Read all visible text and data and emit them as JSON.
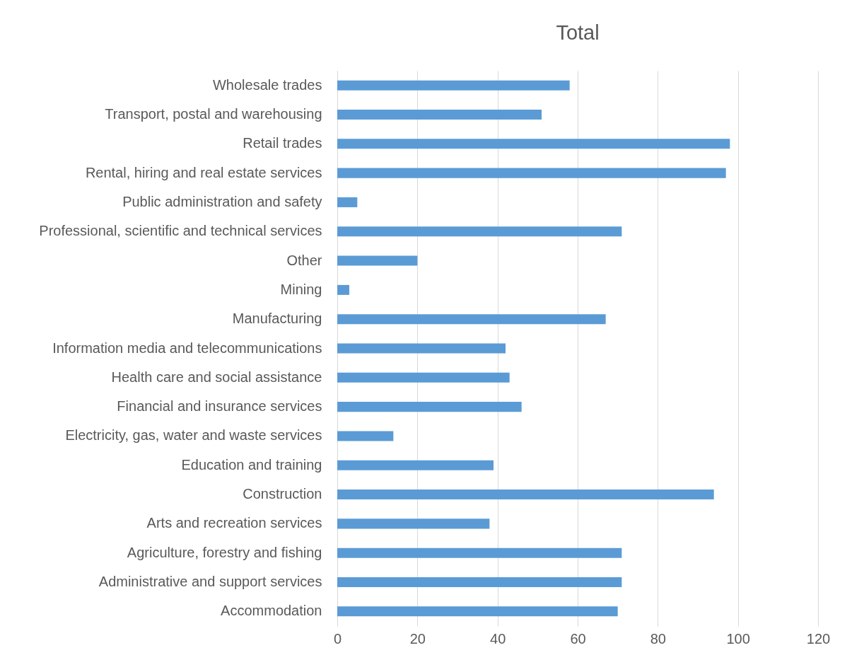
{
  "chart_data": {
    "type": "bar",
    "orientation": "horizontal",
    "title": "Total",
    "categories": [
      "Wholesale trades",
      "Transport, postal and warehousing",
      "Retail trades",
      "Rental, hiring and real estate services",
      "Public administration and safety",
      "Professional, scientific and technical services",
      "Other",
      "Mining",
      "Manufacturing",
      "Information media and telecommunications",
      "Health care and social assistance",
      "Financial and insurance services",
      "Electricity, gas, water and waste services",
      "Education and training",
      "Construction",
      "Arts and recreation services",
      "Agriculture, forestry and fishing",
      "Administrative and support services",
      "Accommodation"
    ],
    "values": [
      58,
      51,
      98,
      97,
      5,
      71,
      20,
      3,
      67,
      42,
      43,
      46,
      14,
      39,
      94,
      38,
      71,
      71,
      70
    ],
    "color": "#5b9bd5",
    "xlim": [
      0,
      120
    ],
    "xticks": [
      0,
      20,
      40,
      60,
      80,
      100,
      120
    ],
    "grid": "x"
  }
}
